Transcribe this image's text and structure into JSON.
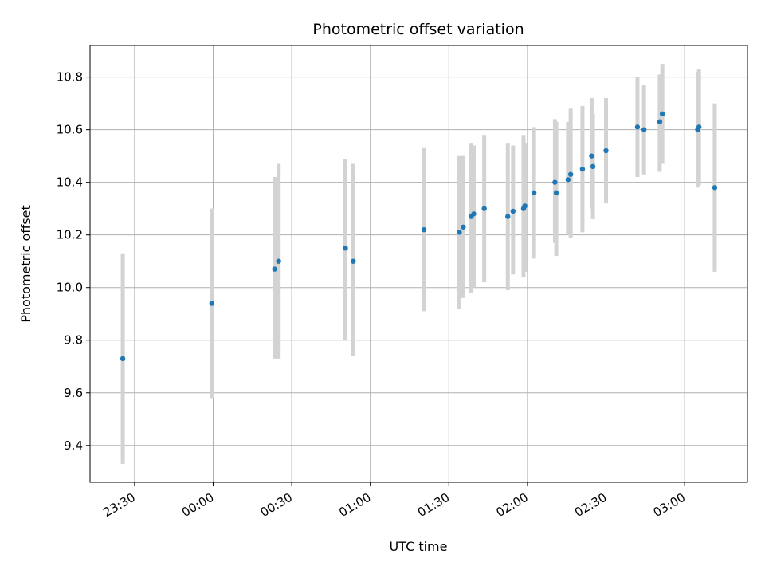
{
  "chart_data": {
    "type": "scatter",
    "title": "Photometric offset variation",
    "xlabel": "UTC time",
    "ylabel": "Photometric offset",
    "xlim": [
      "23:13",
      "03:24"
    ],
    "ylim": [
      9.26,
      10.92
    ],
    "x_ticks": [
      "23:30",
      "00:00",
      "00:30",
      "01:00",
      "01:30",
      "02:00",
      "02:30",
      "03:00"
    ],
    "y_ticks": [
      "9.4",
      "9.6",
      "9.8",
      "10.0",
      "10.2",
      "10.4",
      "10.6",
      "10.8"
    ],
    "grid": true,
    "marker_color": "#1f77b4",
    "errorbar_color": "#d3d3d3",
    "points": [
      {
        "t": "23:25:30",
        "y": 9.73,
        "lo": 9.33,
        "hi": 10.13
      },
      {
        "t": "23:59:30",
        "y": 9.94,
        "lo": 9.58,
        "hi": 10.3
      },
      {
        "t": "00:23:30",
        "y": 10.07,
        "lo": 9.73,
        "hi": 10.42
      },
      {
        "t": "00:25:00",
        "y": 10.1,
        "lo": 9.73,
        "hi": 10.47
      },
      {
        "t": "00:50:30",
        "y": 10.15,
        "lo": 9.8,
        "hi": 10.49
      },
      {
        "t": "00:53:30",
        "y": 10.1,
        "lo": 9.74,
        "hi": 10.47
      },
      {
        "t": "01:20:30",
        "y": 10.22,
        "lo": 9.91,
        "hi": 10.53
      },
      {
        "t": "01:34:00",
        "y": 10.21,
        "lo": 9.92,
        "hi": 10.5
      },
      {
        "t": "01:35:30",
        "y": 10.23,
        "lo": 9.96,
        "hi": 10.5
      },
      {
        "t": "01:38:30",
        "y": 10.27,
        "lo": 9.98,
        "hi": 10.55
      },
      {
        "t": "01:39:30",
        "y": 10.28,
        "lo": 10.0,
        "hi": 10.54
      },
      {
        "t": "01:43:30",
        "y": 10.3,
        "lo": 10.02,
        "hi": 10.58
      },
      {
        "t": "01:52:30",
        "y": 10.27,
        "lo": 9.99,
        "hi": 10.55
      },
      {
        "t": "01:54:30",
        "y": 10.29,
        "lo": 10.05,
        "hi": 10.54
      },
      {
        "t": "01:58:30",
        "y": 10.3,
        "lo": 10.04,
        "hi": 10.58
      },
      {
        "t": "01:59:00",
        "y": 10.31,
        "lo": 10.06,
        "hi": 10.55
      },
      {
        "t": "02:02:30",
        "y": 10.36,
        "lo": 10.11,
        "hi": 10.61
      },
      {
        "t": "02:10:30",
        "y": 10.4,
        "lo": 10.17,
        "hi": 10.64
      },
      {
        "t": "02:11:00",
        "y": 10.36,
        "lo": 10.12,
        "hi": 10.63
      },
      {
        "t": "02:15:30",
        "y": 10.41,
        "lo": 10.2,
        "hi": 10.63
      },
      {
        "t": "02:16:30",
        "y": 10.43,
        "lo": 10.19,
        "hi": 10.68
      },
      {
        "t": "02:21:00",
        "y": 10.45,
        "lo": 10.21,
        "hi": 10.69
      },
      {
        "t": "02:24:30",
        "y": 10.5,
        "lo": 10.3,
        "hi": 10.72
      },
      {
        "t": "02:25:00",
        "y": 10.46,
        "lo": 10.26,
        "hi": 10.66
      },
      {
        "t": "02:30:00",
        "y": 10.52,
        "lo": 10.32,
        "hi": 10.72
      },
      {
        "t": "02:42:00",
        "y": 10.61,
        "lo": 10.42,
        "hi": 10.8
      },
      {
        "t": "02:44:30",
        "y": 10.6,
        "lo": 10.43,
        "hi": 10.77
      },
      {
        "t": "02:50:30",
        "y": 10.63,
        "lo": 10.44,
        "hi": 10.81
      },
      {
        "t": "02:51:30",
        "y": 10.66,
        "lo": 10.47,
        "hi": 10.85
      },
      {
        "t": "03:05:00",
        "y": 10.6,
        "lo": 10.38,
        "hi": 10.82
      },
      {
        "t": "03:05:30",
        "y": 10.61,
        "lo": 10.39,
        "hi": 10.83
      },
      {
        "t": "03:11:30",
        "y": 10.38,
        "lo": 10.06,
        "hi": 10.7
      }
    ]
  }
}
